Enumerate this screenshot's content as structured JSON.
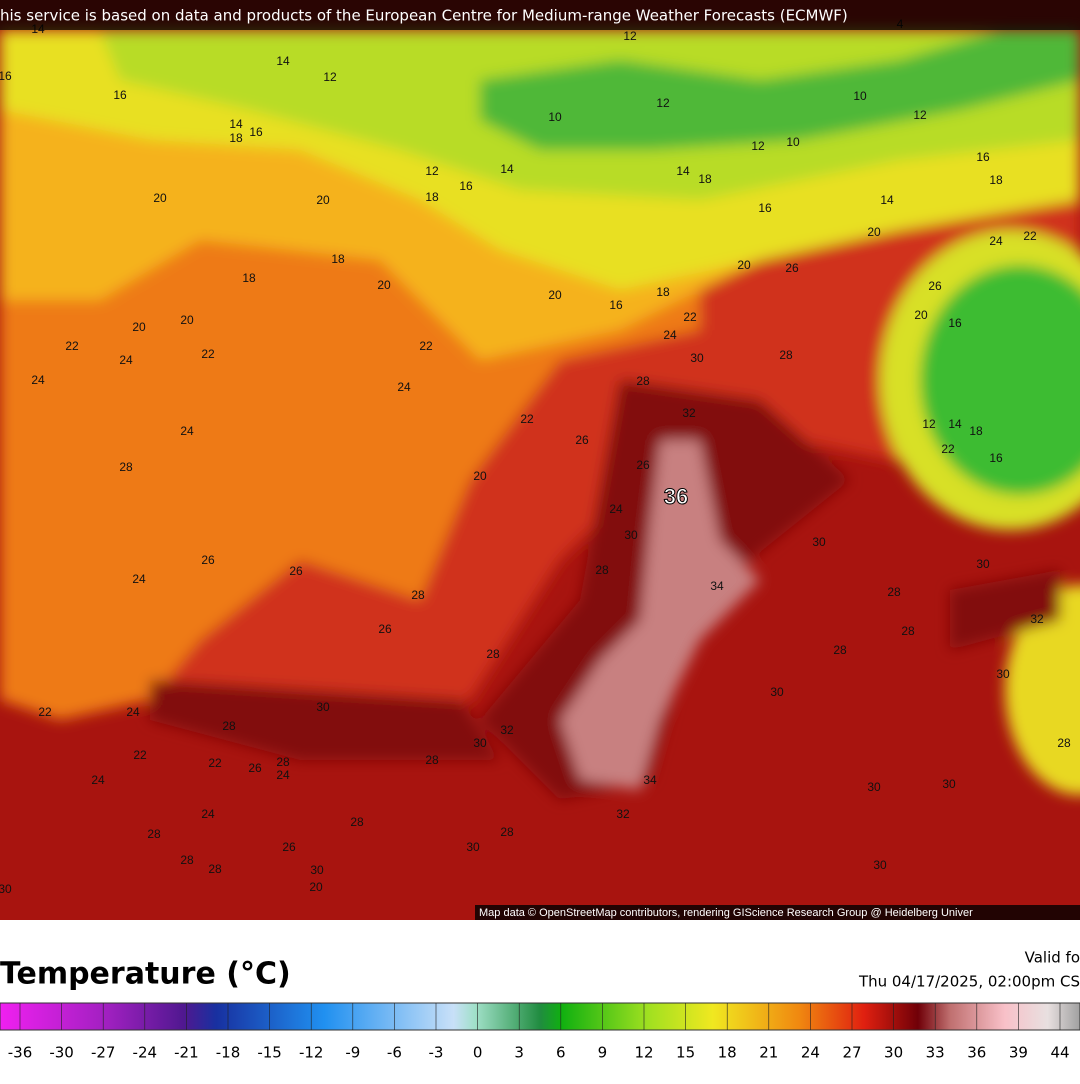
{
  "header": {
    "notice": "his service is based on data and products of the European Centre for Medium-range Weather Forecasts (ECMWF)"
  },
  "map": {
    "attribution": "Map data © OpenStreetMap contributors, rendering GIScience Research Group @ Heidelberg Univer",
    "contour_labels": [
      "14",
      "12",
      "4",
      "16",
      "14",
      "12",
      "16",
      "12",
      "10",
      "10",
      "12",
      "14",
      "18",
      "16",
      "12",
      "10",
      "16",
      "12",
      "16",
      "14",
      "14",
      "18",
      "18",
      "20",
      "20",
      "18",
      "16",
      "14",
      "20",
      "24",
      "22",
      "18",
      "20",
      "26",
      "18",
      "20",
      "20",
      "16",
      "18",
      "26",
      "20",
      "20",
      "22",
      "20",
      "16",
      "22",
      "22",
      "22",
      "24",
      "30",
      "28",
      "24",
      "24",
      "24",
      "28",
      "32",
      "22",
      "12",
      "14",
      "18",
      "24",
      "26",
      "22",
      "16",
      "28",
      "26",
      "20",
      "36",
      "24",
      "30",
      "30",
      "26",
      "26",
      "28",
      "30",
      "24",
      "34",
      "28",
      "28",
      "26",
      "28",
      "32",
      "28",
      "28",
      "30",
      "30",
      "30",
      "22",
      "24",
      "28",
      "32",
      "30",
      "22",
      "22",
      "26",
      "28",
      "24",
      "28",
      "28",
      "34",
      "24",
      "30",
      "30",
      "24",
      "32",
      "28",
      "28",
      "26",
      "30",
      "28",
      "28",
      "28",
      "30",
      "30",
      "20",
      "30"
    ]
  },
  "legend": {
    "title": "Temperature (°C)",
    "valid_label": "Valid fo",
    "valid_time": "Thu 04/17/2025, 02:00pm CS",
    "ticks": [
      "-36",
      "-30",
      "-27",
      "-24",
      "-21",
      "-18",
      "-15",
      "-12",
      "-9",
      "-6",
      "-3",
      "0",
      "3",
      "6",
      "9",
      "12",
      "15",
      "18",
      "21",
      "24",
      "27",
      "30",
      "33",
      "36",
      "39",
      "44"
    ]
  }
}
